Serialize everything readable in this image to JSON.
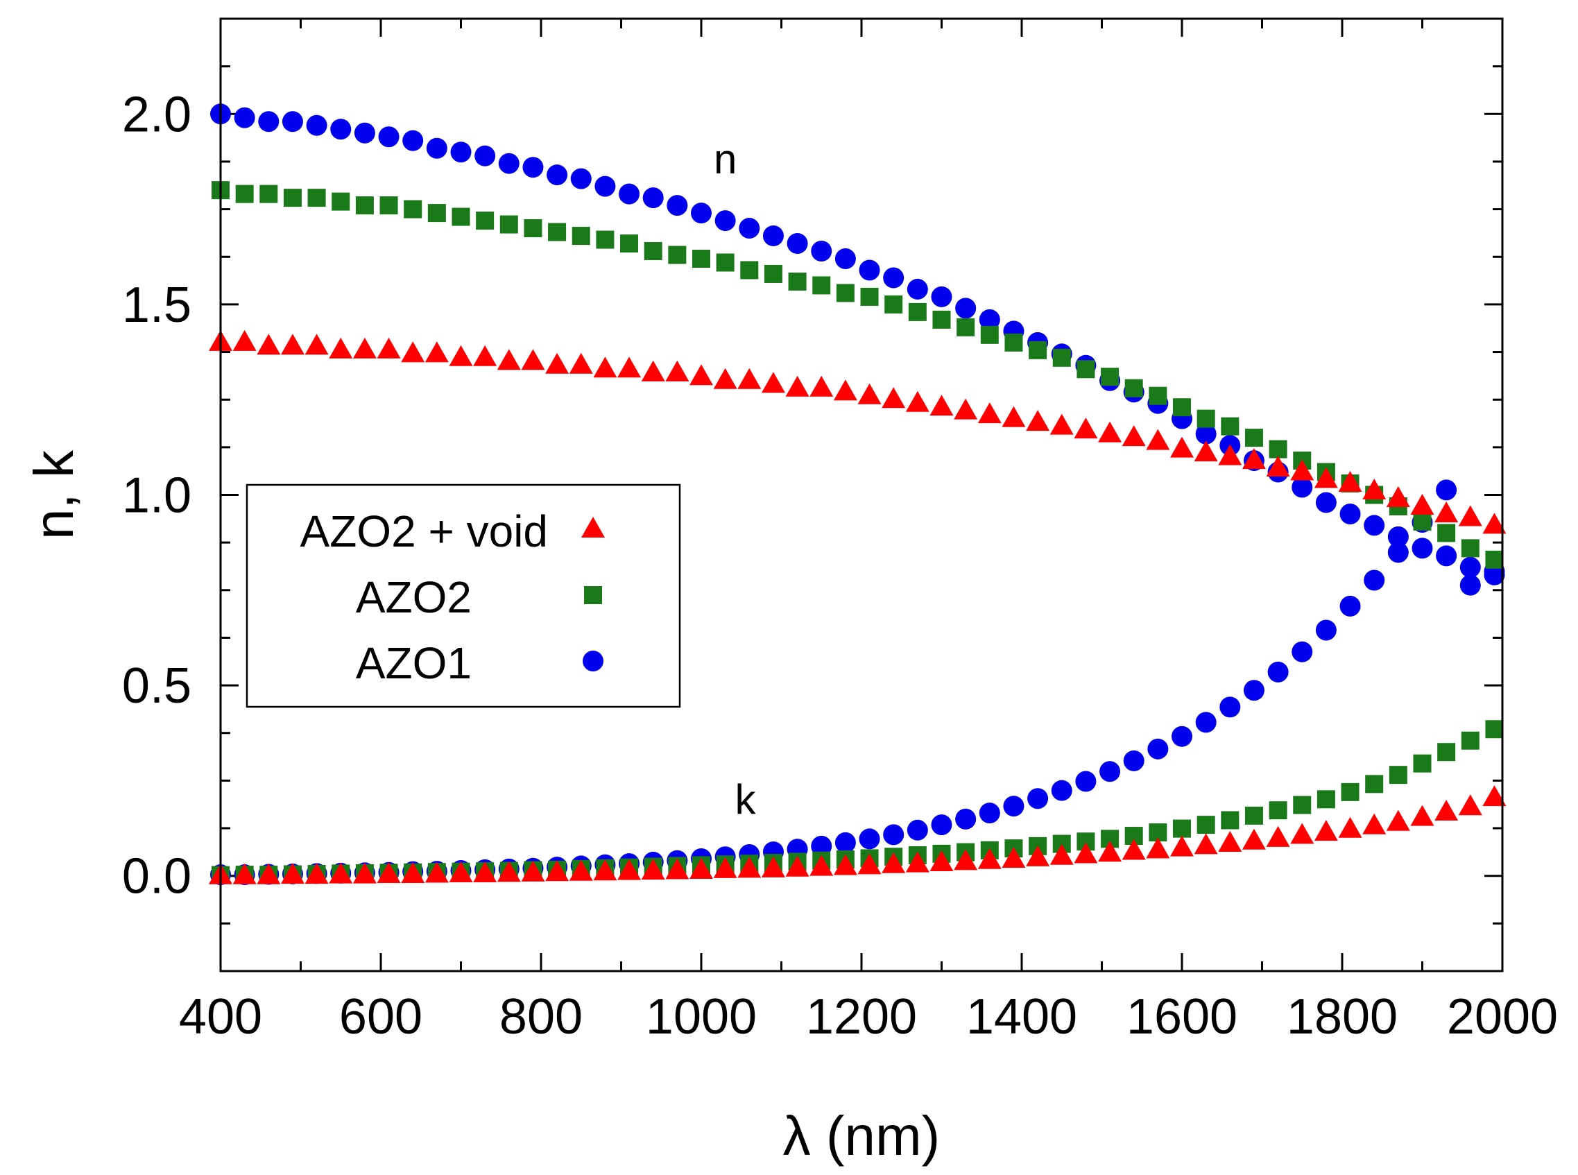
{
  "chart_data": {
    "type": "scatter",
    "title": "",
    "xlabel": "λ (nm)",
    "ylabel": "n, k",
    "xlim": [
      400,
      2000
    ],
    "ylim": [
      -0.25,
      2.25
    ],
    "xticks": [
      400,
      600,
      800,
      1000,
      1200,
      1400,
      1600,
      1800,
      2000
    ],
    "xtick_labels": [
      "400",
      "600",
      "800",
      "1000",
      "1200",
      "1400",
      "1600",
      "1800",
      "2000"
    ],
    "yticks": [
      0.0,
      0.5,
      1.0,
      1.5,
      2.0
    ],
    "ytick_labels": [
      "0.0",
      "0.5",
      "1.0",
      "1.5",
      "2.0"
    ],
    "grid": false,
    "legend_position": "middle-left",
    "annotations": [
      {
        "text": "n",
        "x": 1030,
        "y": 1.88
      },
      {
        "text": "k",
        "x": 1055,
        "y": 0.2
      }
    ],
    "x": [
      400,
      430,
      460,
      490,
      520,
      550,
      580,
      610,
      640,
      670,
      700,
      730,
      760,
      790,
      820,
      850,
      880,
      910,
      940,
      970,
      1000,
      1030,
      1060,
      1090,
      1120,
      1150,
      1180,
      1210,
      1240,
      1270,
      1300,
      1330,
      1360,
      1390,
      1420,
      1450,
      1480,
      1510,
      1540,
      1570,
      1600,
      1630,
      1660,
      1690,
      1720,
      1750,
      1780,
      1810,
      1840,
      1870,
      1900,
      1930,
      1960,
      1990
    ],
    "series": [
      {
        "name": "AZO2 + void",
        "marker": "triangle",
        "color": "#ff0000",
        "n": [
          1.4,
          1.4,
          1.39,
          1.39,
          1.39,
          1.38,
          1.38,
          1.38,
          1.37,
          1.37,
          1.36,
          1.36,
          1.35,
          1.35,
          1.34,
          1.34,
          1.33,
          1.33,
          1.32,
          1.32,
          1.31,
          1.3,
          1.3,
          1.29,
          1.28,
          1.28,
          1.27,
          1.26,
          1.25,
          1.24,
          1.23,
          1.22,
          1.21,
          1.2,
          1.19,
          1.18,
          1.17,
          1.16,
          1.15,
          1.14,
          1.12,
          1.11,
          1.1,
          1.09,
          1.07,
          1.06,
          1.04,
          1.03,
          1.01,
          0.99,
          0.97,
          0.95,
          0.94,
          0.92
        ],
        "k": [
          0.0,
          0.0,
          0.0,
          0.001,
          0.001,
          0.002,
          0.002,
          0.003,
          0.003,
          0.004,
          0.005,
          0.005,
          0.006,
          0.007,
          0.008,
          0.009,
          0.01,
          0.011,
          0.012,
          0.013,
          0.014,
          0.016,
          0.017,
          0.018,
          0.02,
          0.022,
          0.024,
          0.026,
          0.029,
          0.031,
          0.034,
          0.037,
          0.04,
          0.043,
          0.047,
          0.051,
          0.055,
          0.059,
          0.064,
          0.068,
          0.073,
          0.079,
          0.085,
          0.091,
          0.098,
          0.106,
          0.114,
          0.122,
          0.131,
          0.14,
          0.153,
          0.167,
          0.181,
          0.205
        ]
      },
      {
        "name": "AZO2",
        "marker": "square",
        "color": "#1a7a1a",
        "n": [
          1.8,
          1.79,
          1.79,
          1.78,
          1.78,
          1.77,
          1.76,
          1.76,
          1.75,
          1.74,
          1.73,
          1.72,
          1.71,
          1.7,
          1.69,
          1.68,
          1.67,
          1.66,
          1.64,
          1.63,
          1.62,
          1.61,
          1.59,
          1.58,
          1.56,
          1.55,
          1.53,
          1.52,
          1.5,
          1.48,
          1.46,
          1.44,
          1.42,
          1.4,
          1.38,
          1.36,
          1.33,
          1.31,
          1.28,
          1.26,
          1.23,
          1.2,
          1.18,
          1.15,
          1.12,
          1.09,
          1.06,
          1.03,
          1.0,
          0.97,
          0.93,
          0.9,
          0.86,
          0.83
        ],
        "k": [
          0.002,
          0.003,
          0.003,
          0.004,
          0.005,
          0.006,
          0.007,
          0.008,
          0.009,
          0.01,
          0.011,
          0.012,
          0.013,
          0.015,
          0.016,
          0.018,
          0.02,
          0.022,
          0.024,
          0.026,
          0.028,
          0.03,
          0.032,
          0.034,
          0.037,
          0.04,
          0.043,
          0.046,
          0.05,
          0.054,
          0.058,
          0.062,
          0.067,
          0.072,
          0.078,
          0.084,
          0.09,
          0.097,
          0.105,
          0.114,
          0.124,
          0.134,
          0.146,
          0.158,
          0.172,
          0.186,
          0.201,
          0.22,
          0.241,
          0.265,
          0.295,
          0.325,
          0.355,
          0.385
        ]
      },
      {
        "name": "AZO1",
        "marker": "circle",
        "color": "#0000ee",
        "n": [
          2.0,
          1.99,
          1.98,
          1.98,
          1.97,
          1.96,
          1.95,
          1.94,
          1.93,
          1.91,
          1.9,
          1.89,
          1.87,
          1.86,
          1.84,
          1.83,
          1.81,
          1.79,
          1.78,
          1.76,
          1.74,
          1.72,
          1.7,
          1.68,
          1.66,
          1.64,
          1.62,
          1.59,
          1.57,
          1.54,
          1.52,
          1.49,
          1.46,
          1.43,
          1.4,
          1.37,
          1.34,
          1.3,
          1.27,
          1.24,
          1.2,
          1.16,
          1.13,
          1.09,
          1.06,
          1.02,
          0.98,
          0.95,
          0.92,
          0.89,
          0.86,
          0.84,
          0.81,
          0.79
        ],
        "k": [
          0.003,
          0.003,
          0.004,
          0.005,
          0.006,
          0.007,
          0.008,
          0.009,
          0.011,
          0.012,
          0.014,
          0.016,
          0.018,
          0.02,
          0.023,
          0.026,
          0.029,
          0.032,
          0.036,
          0.04,
          0.045,
          0.05,
          0.056,
          0.063,
          0.07,
          0.078,
          0.087,
          0.097,
          0.108,
          0.12,
          0.134,
          0.149,
          0.165,
          0.183,
          0.203,
          0.224,
          0.248,
          0.274,
          0.302,
          0.333,
          0.366,
          0.403,
          0.443,
          0.487,
          0.535,
          0.588,
          0.645,
          0.708,
          0.776,
          0.849,
          0.928,
          1.013,
          0.763,
          0.799
        ]
      }
    ],
    "legend": [
      {
        "label": "AZO2 + void",
        "marker": "triangle",
        "color": "#ff0000"
      },
      {
        "label": "AZO2",
        "marker": "square",
        "color": "#1a7a1a"
      },
      {
        "label": "AZO1",
        "marker": "circle",
        "color": "#0000ee"
      }
    ]
  }
}
